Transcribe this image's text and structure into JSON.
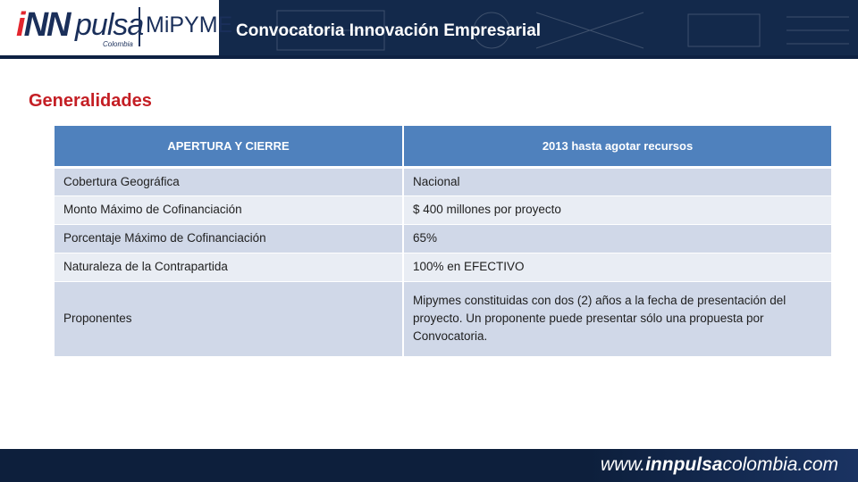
{
  "header": {
    "logo": {
      "inn": "INN",
      "pulsa": "pulsa",
      "colombia": "Colombia",
      "mipyme": "MiPYME"
    },
    "title": "Convocatoria Innovación Empresarial"
  },
  "section_title": "Generalidades",
  "table": {
    "headers": [
      "APERTURA Y CIERRE",
      "2013 hasta agotar recursos"
    ],
    "rows": [
      [
        "Cobertura Geográfica",
        "Nacional"
      ],
      [
        "Monto Máximo de Cofinanciación",
        "$ 400 millones por proyecto"
      ],
      [
        "Porcentaje Máximo de Cofinanciación",
        "65%"
      ],
      [
        "Naturaleza de la Contrapartida",
        "100% en EFECTIVO"
      ],
      [
        "Proponentes",
        "Mipymes constituidas con dos (2) años a la fecha de presentación del proyecto. Un proponente puede presentar sólo una propuesta por Convocatoria."
      ]
    ]
  },
  "footer": {
    "url_prefix": "www.",
    "url_brand": "innpulsa",
    "url_suffix": "colombia.com"
  },
  "colors": {
    "header_bg": "#13294b",
    "table_header": "#4f81bd",
    "row_odd": "#d0d8e8",
    "row_even": "#e9edf4",
    "accent_red": "#c41e24"
  }
}
